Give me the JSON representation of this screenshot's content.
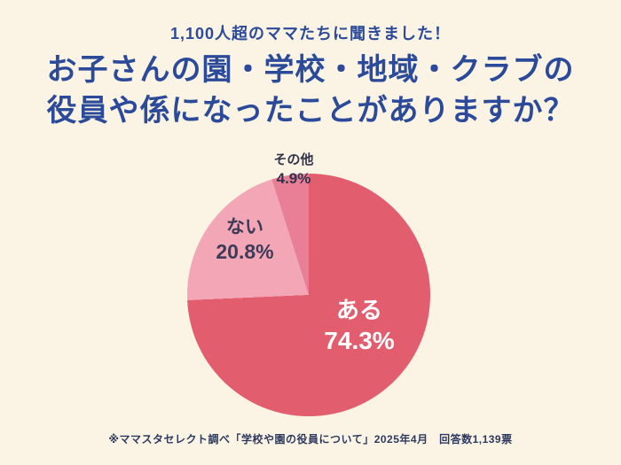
{
  "page": {
    "colors": {
      "background": "#fbf4e4",
      "navy": "#2b4a99",
      "footer_text": "#2c3a60"
    }
  },
  "header": {
    "subtitle": "1,100人超のママたちに聞きました！",
    "title_line1": "お子さんの園・学校・地域・クラブの",
    "title_line2": "役員や係になったことがありますか？"
  },
  "footer": {
    "note": "※ママスタセレクト調べ「学校や園の役員について」2025年4月　回答数1,139票"
  },
  "chart_data": {
    "type": "pie",
    "title": "お子さんの園・学校・地域・クラブの役員や係になったことがありますか？",
    "unit": "%",
    "start_angle_deg": 0,
    "direction": "clockwise",
    "legend": "none",
    "slices": [
      {
        "label": "ある",
        "value": 74.3,
        "display": "74.3%",
        "color": "#e25d6e",
        "label_color": "#ffffff"
      },
      {
        "label": "ない",
        "value": 20.8,
        "display": "20.8%",
        "color": "#f3a7b6",
        "label_color": "#3c3c58"
      },
      {
        "label": "その他",
        "value": 4.9,
        "display": "4.9%",
        "color": "#e97f97",
        "label_color": "#32324a"
      }
    ]
  }
}
